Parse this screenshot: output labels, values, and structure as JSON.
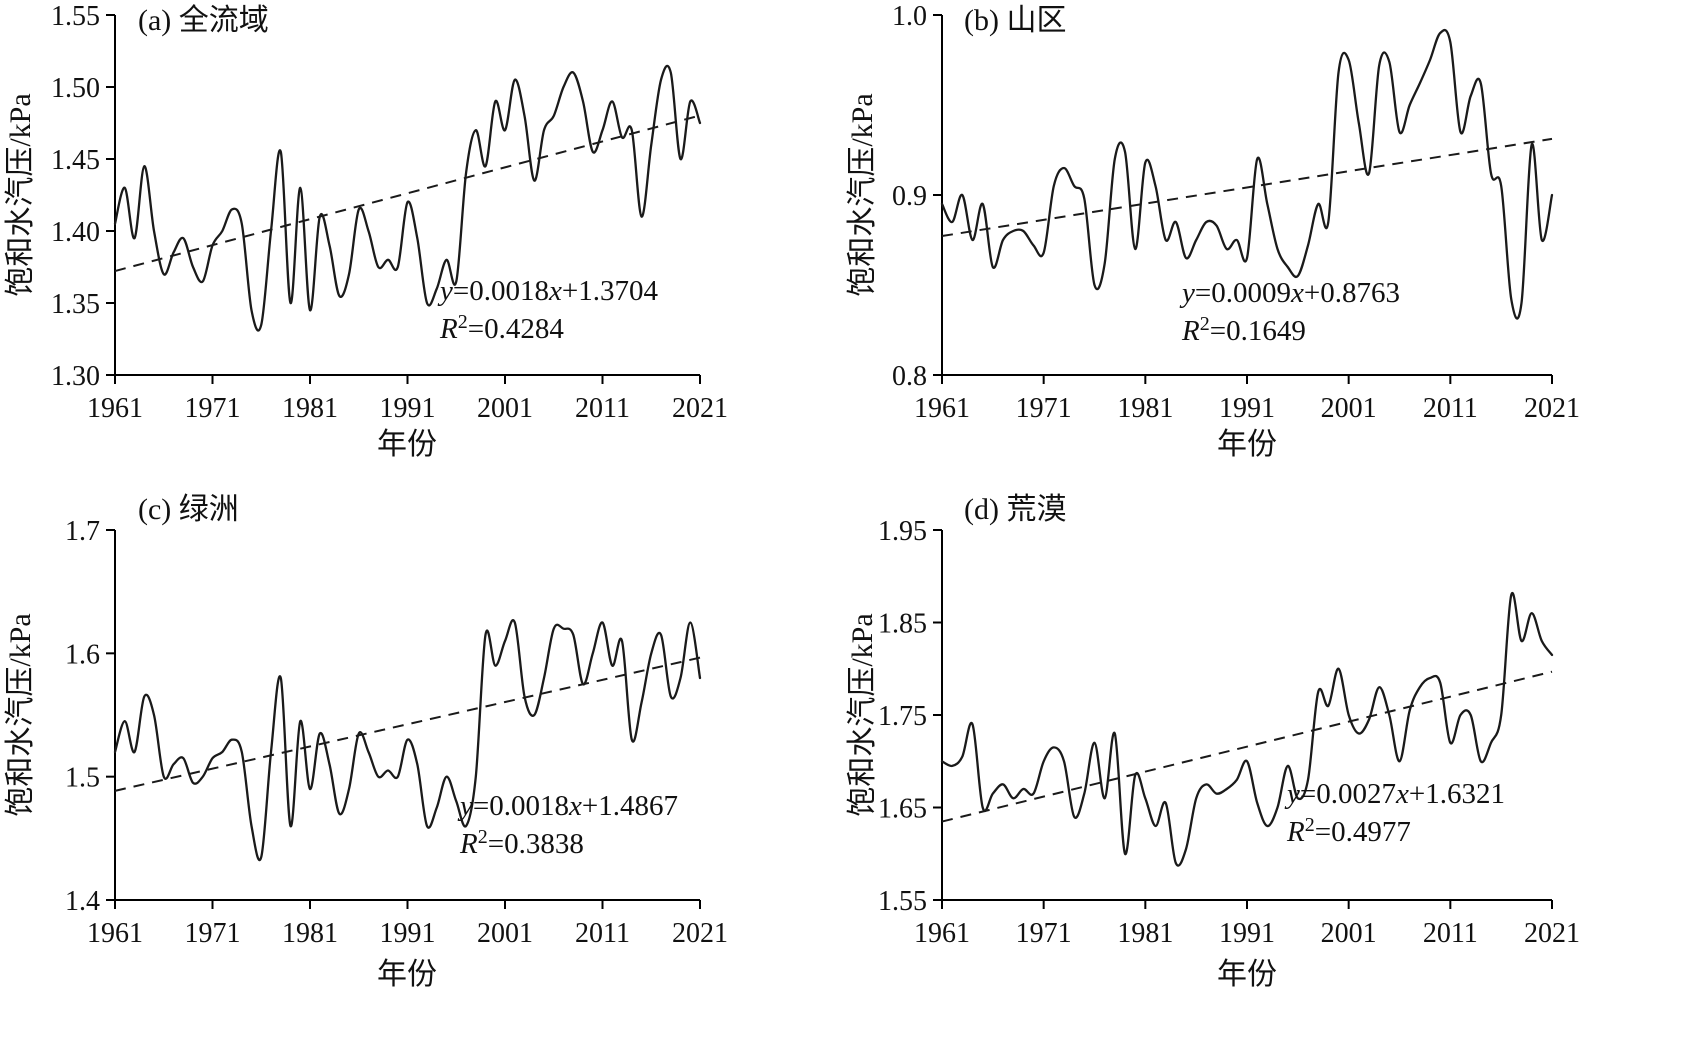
{
  "colors": {
    "line": "#1a1a1a",
    "axis": "#000000",
    "background": "#ffffff"
  },
  "chart_data": [
    {
      "type": "line",
      "title": "(a) 全流域",
      "xlabel": "年份",
      "ylabel": "饱和水汽压/kPa",
      "xlim": [
        1961,
        2021
      ],
      "ylim": [
        1.3,
        1.55
      ],
      "x_ticks": [
        1961,
        1971,
        1981,
        1991,
        2001,
        2011,
        2021
      ],
      "y_ticks": [
        1.3,
        1.35,
        1.4,
        1.45,
        1.5,
        1.55
      ],
      "y_tick_labels": [
        "1.30",
        "1.35",
        "1.40",
        "1.45",
        "1.50",
        "1.55"
      ],
      "grid": false,
      "legend": false,
      "annotation": {
        "y": "y",
        "slope": "=0.0018",
        "x": "x",
        "intercept": "+1.3704",
        "r": "R",
        "exp": "2",
        "rval": "=0.4284"
      },
      "series": [
        {
          "name": "annual-saturation-vapor-pressure",
          "type": "solid",
          "start_year": 1961,
          "values": [
            1.405,
            1.43,
            1.395,
            1.445,
            1.4,
            1.37,
            1.385,
            1.395,
            1.375,
            1.365,
            1.39,
            1.4,
            1.415,
            1.405,
            1.345,
            1.335,
            1.4,
            1.455,
            1.35,
            1.43,
            1.345,
            1.41,
            1.39,
            1.355,
            1.37,
            1.415,
            1.4,
            1.375,
            1.38,
            1.375,
            1.42,
            1.395,
            1.35,
            1.36,
            1.38,
            1.365,
            1.44,
            1.47,
            1.445,
            1.49,
            1.47,
            1.505,
            1.48,
            1.435,
            1.47,
            1.48,
            1.5,
            1.51,
            1.49,
            1.455,
            1.47,
            1.49,
            1.465,
            1.47,
            1.41,
            1.46,
            1.505,
            1.51,
            1.45,
            1.49,
            1.475
          ]
        },
        {
          "name": "linear-trend",
          "type": "dashed-trend",
          "slope": 0.0018,
          "intercept": 1.3704,
          "x_base": 1960
        }
      ]
    },
    {
      "type": "line",
      "title": "(b) 山区",
      "xlabel": "年份",
      "ylabel": "饱和水汽压/kPa",
      "xlim": [
        1961,
        2021
      ],
      "ylim": [
        0.8,
        1.0
      ],
      "x_ticks": [
        1961,
        1971,
        1981,
        1991,
        2001,
        2011,
        2021
      ],
      "y_ticks": [
        0.8,
        0.9,
        1.0
      ],
      "y_tick_labels": [
        "0.8",
        "0.9",
        "1.0"
      ],
      "grid": false,
      "legend": false,
      "annotation": {
        "y": "y",
        "slope": "=0.0009",
        "x": "x",
        "intercept": "+0.8763",
        "r": "R",
        "exp": "2",
        "rval": "=0.1649"
      },
      "series": [
        {
          "name": "annual-saturation-vapor-pressure",
          "type": "solid",
          "start_year": 1961,
          "values": [
            0.895,
            0.885,
            0.9,
            0.875,
            0.895,
            0.86,
            0.875,
            0.88,
            0.88,
            0.872,
            0.868,
            0.905,
            0.915,
            0.905,
            0.898,
            0.85,
            0.862,
            0.92,
            0.924,
            0.87,
            0.918,
            0.905,
            0.875,
            0.885,
            0.865,
            0.875,
            0.885,
            0.883,
            0.87,
            0.875,
            0.865,
            0.92,
            0.895,
            0.87,
            0.86,
            0.855,
            0.872,
            0.895,
            0.885,
            0.968,
            0.975,
            0.94,
            0.912,
            0.972,
            0.974,
            0.935,
            0.95,
            0.962,
            0.975,
            0.99,
            0.985,
            0.935,
            0.955,
            0.962,
            0.912,
            0.905,
            0.842,
            0.84,
            0.928,
            0.875,
            0.9
          ]
        },
        {
          "name": "linear-trend",
          "type": "dashed-trend",
          "slope": 0.0009,
          "intercept": 0.8763,
          "x_base": 1960
        }
      ]
    },
    {
      "type": "line",
      "title": "(c) 绿洲",
      "xlabel": "年份",
      "ylabel": "饱和水汽压/kPa",
      "xlim": [
        1961,
        2021
      ],
      "ylim": [
        1.4,
        1.7
      ],
      "x_ticks": [
        1961,
        1971,
        1981,
        1991,
        2001,
        2011,
        2021
      ],
      "y_ticks": [
        1.4,
        1.5,
        1.6,
        1.7
      ],
      "y_tick_labels": [
        "1.4",
        "1.5",
        "1.6",
        "1.7"
      ],
      "grid": false,
      "legend": false,
      "annotation": {
        "y": "y",
        "slope": "=0.0018",
        "x": "x",
        "intercept": "+1.4867",
        "r": "R",
        "exp": "2",
        "rval": "=0.3838"
      },
      "series": [
        {
          "name": "annual-saturation-vapor-pressure",
          "type": "solid",
          "start_year": 1961,
          "values": [
            1.52,
            1.545,
            1.52,
            1.565,
            1.55,
            1.5,
            1.51,
            1.515,
            1.495,
            1.5,
            1.515,
            1.52,
            1.53,
            1.52,
            1.46,
            1.435,
            1.52,
            1.58,
            1.46,
            1.545,
            1.49,
            1.535,
            1.51,
            1.47,
            1.49,
            1.535,
            1.52,
            1.5,
            1.505,
            1.5,
            1.53,
            1.51,
            1.46,
            1.475,
            1.5,
            1.48,
            1.46,
            1.5,
            1.615,
            1.59,
            1.61,
            1.625,
            1.565,
            1.55,
            1.58,
            1.62,
            1.62,
            1.615,
            1.575,
            1.6,
            1.625,
            1.59,
            1.61,
            1.53,
            1.56,
            1.6,
            1.615,
            1.565,
            1.58,
            1.625,
            1.58
          ]
        },
        {
          "name": "linear-trend",
          "type": "dashed-trend",
          "slope": 0.0018,
          "intercept": 1.4867,
          "x_base": 1960
        }
      ]
    },
    {
      "type": "line",
      "title": "(d) 荒漠",
      "xlabel": "年份",
      "ylabel": "饱和水汽压/kPa",
      "xlim": [
        1961,
        2021
      ],
      "ylim": [
        1.55,
        1.95
      ],
      "x_ticks": [
        1961,
        1971,
        1981,
        1991,
        2001,
        2011,
        2021
      ],
      "y_ticks": [
        1.55,
        1.65,
        1.75,
        1.85,
        1.95
      ],
      "y_tick_labels": [
        "1.55",
        "1.65",
        "1.75",
        "1.85",
        "1.95"
      ],
      "grid": false,
      "legend": false,
      "annotation": {
        "y": "y",
        "slope": "=0.0027",
        "x": "x",
        "intercept": "+1.6321",
        "r": "R",
        "exp": "2",
        "rval": "=0.4977"
      },
      "series": [
        {
          "name": "annual-saturation-vapor-pressure",
          "type": "solid",
          "start_year": 1961,
          "values": [
            1.7,
            1.695,
            1.705,
            1.74,
            1.65,
            1.665,
            1.675,
            1.66,
            1.67,
            1.665,
            1.7,
            1.715,
            1.7,
            1.64,
            1.665,
            1.72,
            1.66,
            1.73,
            1.6,
            1.685,
            1.66,
            1.63,
            1.655,
            1.59,
            1.605,
            1.66,
            1.675,
            1.665,
            1.67,
            1.68,
            1.7,
            1.655,
            1.63,
            1.65,
            1.695,
            1.66,
            1.68,
            1.775,
            1.76,
            1.8,
            1.75,
            1.73,
            1.745,
            1.78,
            1.75,
            1.7,
            1.755,
            1.78,
            1.79,
            1.785,
            1.72,
            1.75,
            1.75,
            1.7,
            1.72,
            1.75,
            1.88,
            1.83,
            1.86,
            1.83,
            1.815
          ]
        },
        {
          "name": "linear-trend",
          "type": "dashed-trend",
          "slope": 0.0027,
          "intercept": 1.6321,
          "x_base": 1960
        }
      ]
    }
  ]
}
